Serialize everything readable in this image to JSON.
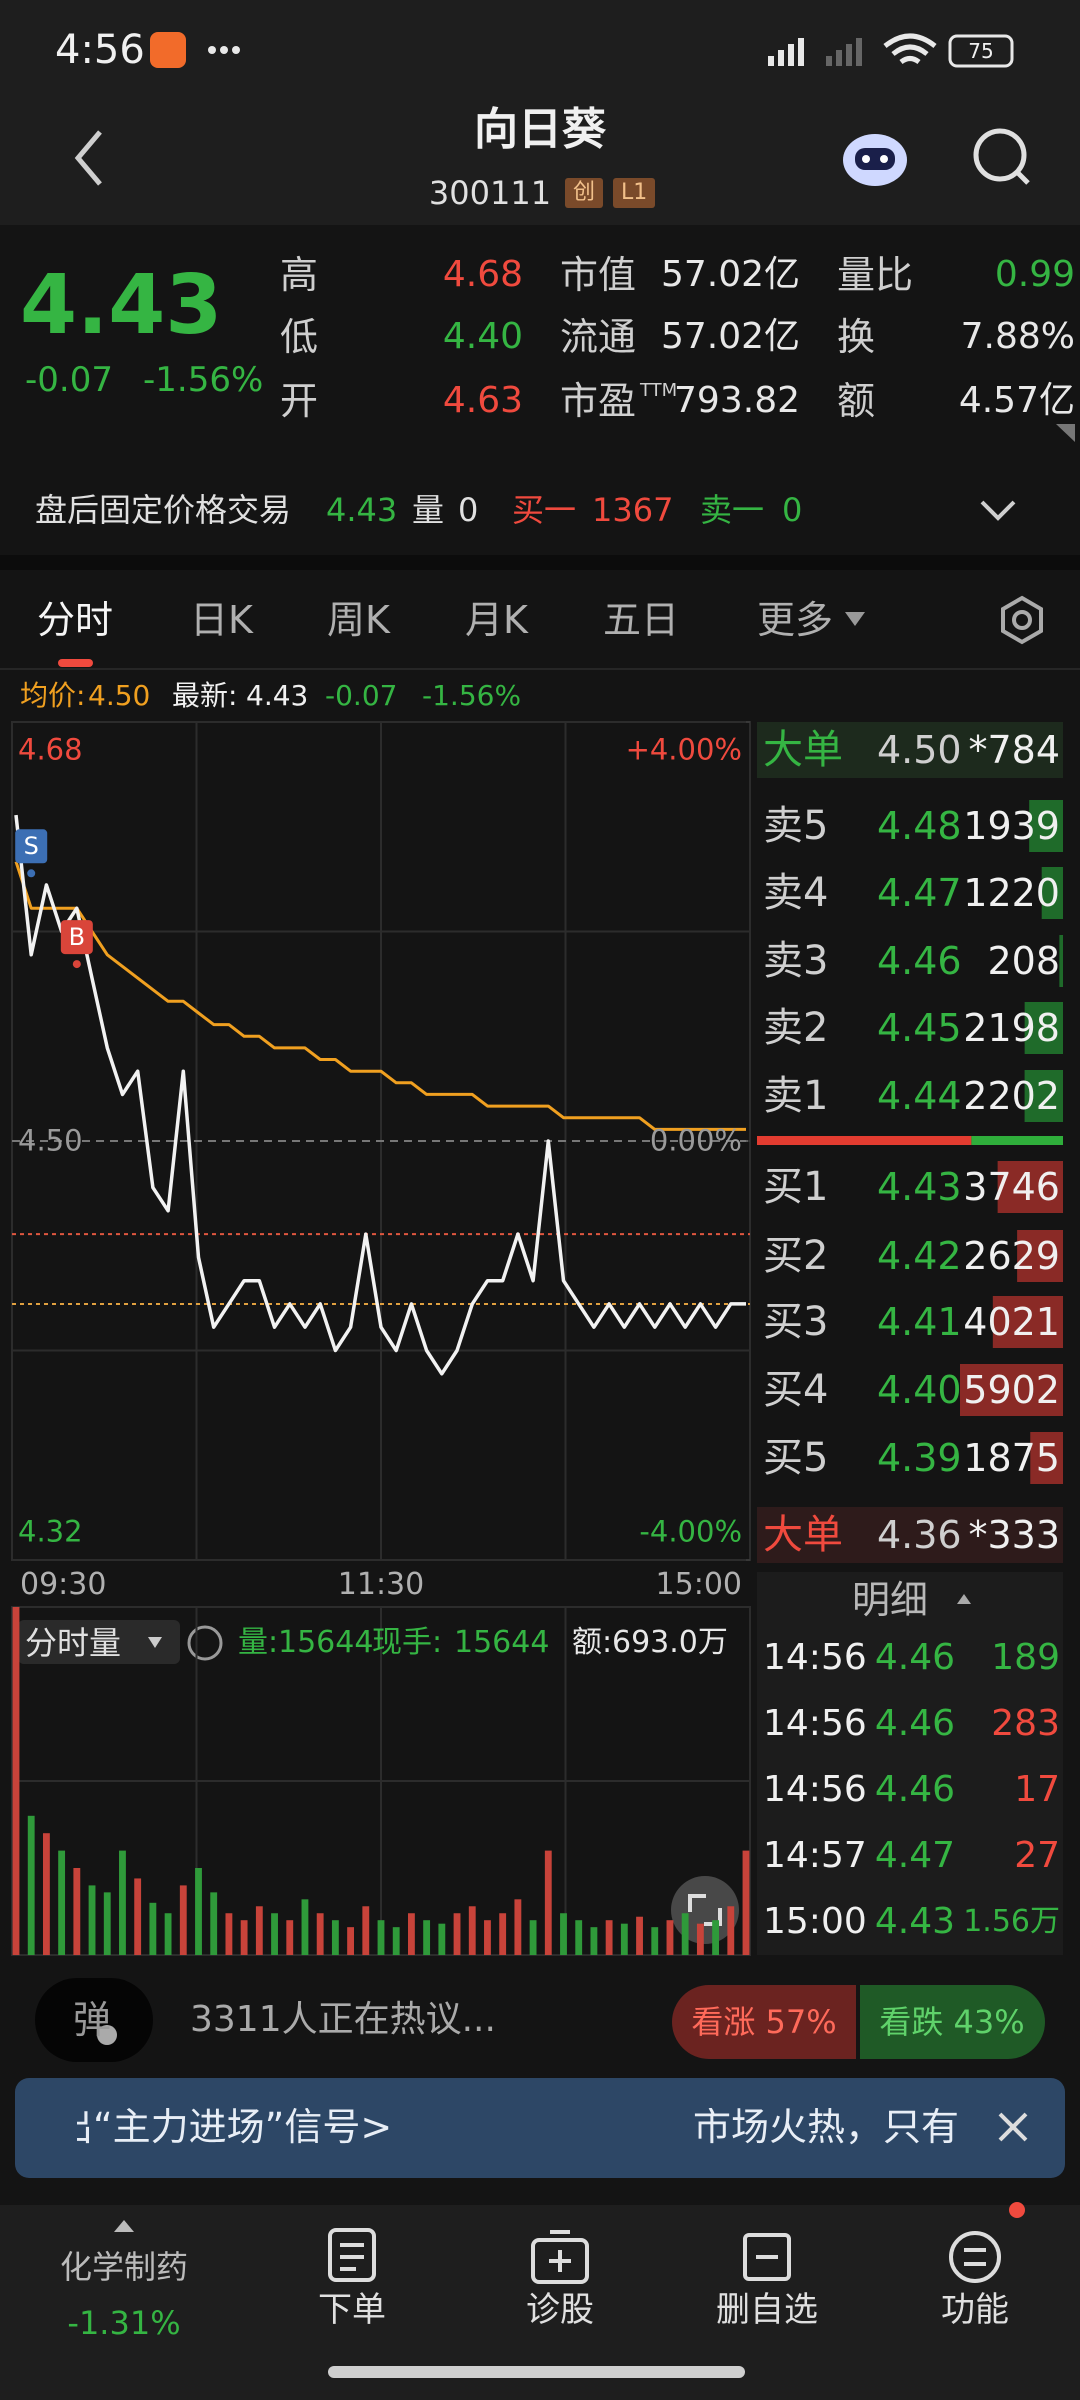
{
  "status_bar": {
    "time": "4:56",
    "battery": "75"
  },
  "header": {
    "title": "向日葵",
    "code": "300111",
    "badges": [
      "创",
      "L1"
    ]
  },
  "quote": {
    "price": "4.43",
    "change": "-0.07",
    "change_pct": "-1.56%",
    "stats": [
      [
        {
          "label": "高",
          "value": "4.68",
          "color": "#f04a3e"
        },
        {
          "label": "市值",
          "value": "57.02亿",
          "color": "#e8e8e8"
        },
        {
          "label": "量比",
          "value": "0.99",
          "color": "#35b543"
        }
      ],
      [
        {
          "label": "低",
          "value": "4.40",
          "color": "#35b543"
        },
        {
          "label": "流通",
          "value": "57.02亿",
          "color": "#e8e8e8"
        },
        {
          "label": "换",
          "value": "7.88%",
          "color": "#e8e8e8"
        }
      ],
      [
        {
          "label": "开",
          "value": "4.63",
          "color": "#f04a3e"
        },
        {
          "label": "市盈",
          "label_sup": "TTM",
          "value": "793.82",
          "color": "#e8e8e8"
        },
        {
          "label": "额",
          "value": "4.57亿",
          "color": "#e8e8e8"
        }
      ]
    ]
  },
  "after_hours": {
    "label": "盘后固定价格交易",
    "price": "4.43",
    "vol_label": "量",
    "vol": "0",
    "bid_label": "买一",
    "bid": "1367",
    "ask_label": "卖一",
    "ask": "0"
  },
  "tabs": [
    "分时",
    "日K",
    "周K",
    "月K",
    "五日",
    "更多"
  ],
  "chart_info": {
    "avg_label": "均价:",
    "avg": "4.50",
    "latest_label": "最新:",
    "latest": "4.43",
    "change": "-0.07",
    "change_pct": "-1.56%"
  },
  "chart_data": {
    "type": "line",
    "ylim": [
      4.32,
      4.68
    ],
    "yticks": [
      4.68,
      {
        "value": 4.5,
        "label": "4.50"
      },
      4.32
    ],
    "ygrid": [
      4.59,
      4.41
    ],
    "y2lim": [
      -4,
      4
    ],
    "y2ticks": [
      {
        "value": 4,
        "label": "+4.00%"
      },
      {
        "value": 0,
        "label": "0.00%"
      },
      {
        "value": -4,
        "label": "-4.00%"
      }
    ],
    "xticks": [
      "09:30",
      "11:30",
      "15:00"
    ],
    "price_color": "#f2f2f2",
    "avg_color": "#f0a020",
    "price": [
      4.64,
      4.58,
      4.61,
      4.59,
      4.6,
      4.57,
      4.54,
      4.52,
      4.53,
      4.48,
      4.47,
      4.53,
      4.45,
      4.42,
      4.43,
      4.44,
      4.44,
      4.42,
      4.43,
      4.42,
      4.43,
      4.41,
      4.42,
      4.46,
      4.42,
      4.41,
      4.43,
      4.41,
      4.4,
      4.41,
      4.43,
      4.44,
      4.44,
      4.46,
      4.44,
      4.5,
      4.44,
      4.43,
      4.42,
      4.43,
      4.42,
      4.43,
      4.42,
      4.43,
      4.42,
      4.43,
      4.42,
      4.43,
      4.43
    ],
    "avg": [
      4.62,
      4.6,
      4.6,
      4.6,
      4.6,
      4.59,
      4.58,
      4.575,
      4.57,
      4.565,
      4.56,
      4.56,
      4.555,
      4.55,
      4.55,
      4.545,
      4.545,
      4.54,
      4.54,
      4.54,
      4.535,
      4.535,
      4.53,
      4.53,
      4.53,
      4.525,
      4.525,
      4.52,
      4.52,
      4.52,
      4.52,
      4.515,
      4.515,
      4.515,
      4.515,
      4.515,
      4.51,
      4.51,
      4.51,
      4.51,
      4.51,
      4.51,
      4.505,
      4.505,
      4.505,
      4.505,
      4.505,
      4.505,
      4.505
    ],
    "ref_lines": [
      {
        "value": 4.46,
        "color": "#e0573f"
      },
      {
        "value": 4.43,
        "color": "#e0a040"
      }
    ],
    "markers": [
      {
        "label": "S",
        "x": 1,
        "value": 4.615,
        "color": "#3c6fb4"
      },
      {
        "label": "B",
        "x": 4,
        "value": 4.576,
        "color": "#d9453a"
      }
    ]
  },
  "volume_chart": {
    "type": "bar",
    "label": "分时量",
    "ylim": [
      0,
      100
    ],
    "stats": [
      {
        "label": "量:",
        "value": "15644",
        "color": "#35b543"
      },
      {
        "label": "现手:",
        "value": "15644",
        "color": "#35b543"
      },
      {
        "label": "额:",
        "value": "693.0万",
        "color": "#e8e8e8"
      }
    ],
    "values": [
      100,
      40,
      35,
      30,
      25,
      20,
      18,
      30,
      22,
      15,
      12,
      20,
      25,
      18,
      12,
      10,
      14,
      12,
      10,
      16,
      12,
      10,
      8,
      14,
      10,
      8,
      12,
      10,
      9,
      12,
      14,
      10,
      12,
      16,
      10,
      30,
      12,
      10,
      8,
      10,
      9,
      11,
      8,
      10,
      12,
      9,
      10,
      14,
      30
    ]
  },
  "order_book": {
    "big_sell": {
      "label": "大单",
      "price": "4.50",
      "vol": "*784"
    },
    "asks": [
      {
        "label": "卖5",
        "price": "4.48",
        "vol": 1939
      },
      {
        "label": "卖4",
        "price": "4.47",
        "vol": 1220
      },
      {
        "label": "卖3",
        "price": "4.46",
        "vol": 208
      },
      {
        "label": "卖2",
        "price": "4.45",
        "vol": 2198
      },
      {
        "label": "卖1",
        "price": "4.44",
        "vol": 2202
      }
    ],
    "bids": [
      {
        "label": "买1",
        "price": "4.43",
        "vol": 3746
      },
      {
        "label": "买2",
        "price": "4.42",
        "vol": 2629
      },
      {
        "label": "买3",
        "price": "4.41",
        "vol": 4021
      },
      {
        "label": "买4",
        "price": "4.40",
        "vol": 5902
      },
      {
        "label": "买5",
        "price": "4.39",
        "vol": 1875
      }
    ],
    "big_buy": {
      "label": "大单",
      "price": "4.36",
      "vol": "*333"
    }
  },
  "details": {
    "title": "明细",
    "rows": [
      {
        "time": "14:56",
        "price": "4.46",
        "vol": "189",
        "color": "#35b543"
      },
      {
        "time": "14:56",
        "price": "4.46",
        "vol": "283",
        "color": "#f04a3e"
      },
      {
        "time": "14:56",
        "price": "4.46",
        "vol": "17",
        "color": "#f04a3e"
      },
      {
        "time": "14:57",
        "price": "4.47",
        "vol": "27",
        "color": "#f04a3e"
      },
      {
        "time": "15:00",
        "price": "4.43",
        "vol": "1.56万",
        "color": "#35b543"
      }
    ]
  },
  "discussion": {
    "button": "弹",
    "text": "3311人正在热议...",
    "up": "看涨 57%",
    "down": "看跌 43%"
  },
  "banner": {
    "left": "出“主力进场”信号>",
    "right": "市场火热，只有"
  },
  "nav": {
    "sector": "化学制药",
    "sector_change": "-1.31%",
    "items": [
      "下单",
      "诊股",
      "删自选",
      "功能"
    ]
  }
}
